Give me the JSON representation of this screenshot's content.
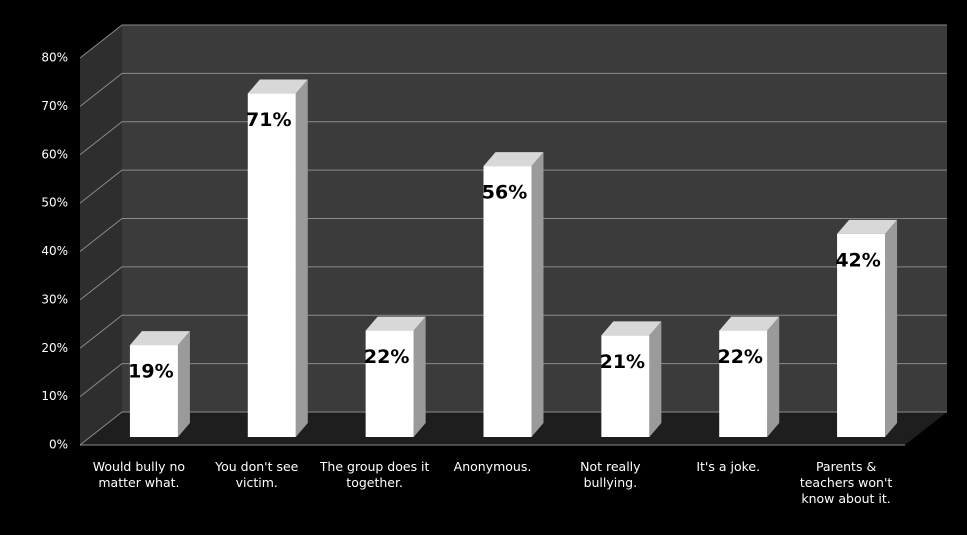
{
  "chart_data": {
    "type": "bar",
    "categories": [
      "Would bully no matter what.",
      "You don't see victim.",
      "The group does it together.",
      "Anonymous.",
      "Not really bullying.",
      "It's a joke.",
      "Parents & teachers won't know about it."
    ],
    "values": [
      19,
      71,
      22,
      56,
      21,
      22,
      42
    ],
    "value_labels": [
      "19%",
      "71%",
      "22%",
      "56%",
      "21%",
      "22%",
      "42%"
    ],
    "color": "#ffffff",
    "ylim": [
      0,
      80
    ],
    "yticks": [
      {
        "value": 0,
        "label": "0%"
      },
      {
        "value": 10,
        "label": "10%"
      },
      {
        "value": 20,
        "label": "20%"
      },
      {
        "value": 30,
        "label": "30%"
      },
      {
        "value": 40,
        "label": "40%"
      },
      {
        "value": 50,
        "label": "50%"
      },
      {
        "value": 60,
        "label": "60%"
      },
      {
        "value": 70,
        "label": "70%"
      },
      {
        "value": 80,
        "label": "80%"
      }
    ],
    "grid": true
  }
}
